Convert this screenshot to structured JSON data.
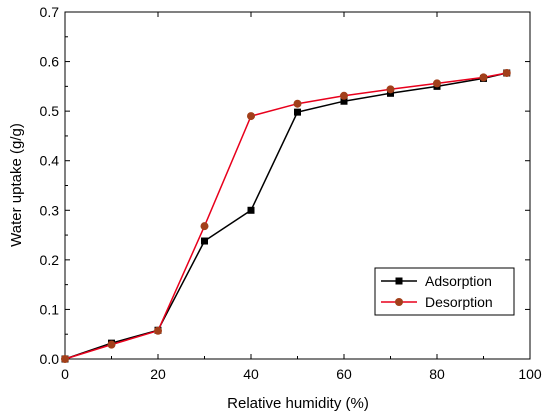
{
  "chart_data": {
    "type": "line",
    "title": "",
    "xlabel": "Relative humidity (%)",
    "ylabel": "Water uptake (g/g)",
    "xlim": [
      0,
      100
    ],
    "ylim": [
      0,
      0.7
    ],
    "x_ticks": [
      0,
      20,
      40,
      60,
      80,
      100
    ],
    "y_ticks": [
      0.0,
      0.1,
      0.2,
      0.3,
      0.4,
      0.5,
      0.6,
      0.7
    ],
    "x_tick_labels": [
      "0",
      "20",
      "40",
      "60",
      "80",
      "100"
    ],
    "y_tick_labels": [
      "0.0",
      "0.1",
      "0.2",
      "0.3",
      "0.4",
      "0.5",
      "0.6",
      "0.7"
    ],
    "grid": false,
    "legend_position": "bottom-right",
    "series": [
      {
        "name": "Adsorption",
        "line_color": "#000000",
        "marker_color": "#000000",
        "marker": "square",
        "points": [
          {
            "x": 0,
            "y": 0.0
          },
          {
            "x": 10,
            "y": 0.032
          },
          {
            "x": 20,
            "y": 0.058
          },
          {
            "x": 30,
            "y": 0.238
          },
          {
            "x": 40,
            "y": 0.3
          },
          {
            "x": 50,
            "y": 0.498
          },
          {
            "x": 60,
            "y": 0.52
          },
          {
            "x": 70,
            "y": 0.536
          },
          {
            "x": 80,
            "y": 0.55
          },
          {
            "x": 90,
            "y": 0.566
          },
          {
            "x": 95,
            "y": 0.577
          }
        ]
      },
      {
        "name": "Desorption",
        "line_color": "#e8001c",
        "marker_color": "#a23f1a",
        "marker": "circle",
        "points": [
          {
            "x": 0,
            "y": 0.0
          },
          {
            "x": 10,
            "y": 0.029
          },
          {
            "x": 20,
            "y": 0.057
          },
          {
            "x": 30,
            "y": 0.268
          },
          {
            "x": 40,
            "y": 0.49
          },
          {
            "x": 50,
            "y": 0.515
          },
          {
            "x": 60,
            "y": 0.531
          },
          {
            "x": 70,
            "y": 0.544
          },
          {
            "x": 80,
            "y": 0.556
          },
          {
            "x": 90,
            "y": 0.568
          },
          {
            "x": 95,
            "y": 0.577
          }
        ]
      }
    ]
  }
}
